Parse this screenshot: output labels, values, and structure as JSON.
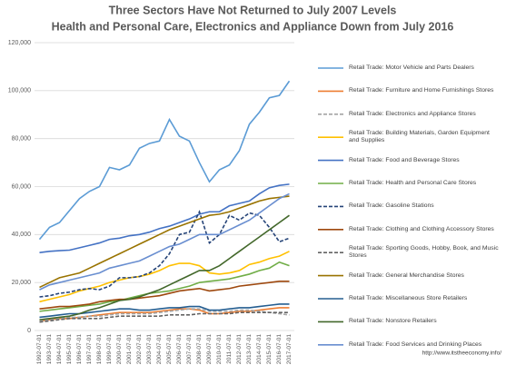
{
  "chart_data": {
    "type": "line",
    "title": "Three Sectors Have Not Returned to July 2007 Levels",
    "subtitle": "Health and Personal Care, Electronics and Appliance Down from July 2016",
    "source": "http://www.itstheeconomy.info/",
    "categories": [
      "1992-07-01",
      "1993-07-01",
      "1994-07-01",
      "1995-07-01",
      "1996-07-01",
      "1997-07-01",
      "1998-07-01",
      "1999-07-01",
      "2000-07-01",
      "2001-07-01",
      "2002-07-01",
      "2003-07-01",
      "2004-07-01",
      "2005-07-01",
      "2006-07-01",
      "2007-07-01",
      "2008-07-01",
      "2009-07-01",
      "2010-07-01",
      "2011-07-01",
      "2012-07-01",
      "2013-07-01",
      "2014-07-01",
      "2015-07-01",
      "2016-07-01",
      "2017-07-01"
    ],
    "ylim": [
      0,
      120000
    ],
    "yticks": [
      {
        "value": 0,
        "label": "0"
      },
      {
        "value": 20000,
        "label": "20,000"
      },
      {
        "value": 40000,
        "label": "40,000"
      },
      {
        "value": 60000,
        "label": "60,000"
      },
      {
        "value": 80000,
        "label": "80,000"
      },
      {
        "value": 100000,
        "label": "100,000"
      },
      {
        "value": 120000,
        "label": "120,000"
      }
    ],
    "grid": true,
    "series": [
      {
        "name": "Retail Trade: Motor Vehicle and Parts Dealers",
        "color": "#5b9bd5",
        "dashed": false,
        "values": [
          38000,
          43000,
          45000,
          50000,
          55000,
          58000,
          60000,
          68000,
          67000,
          69000,
          76000,
          78000,
          79000,
          88000,
          81000,
          79000,
          70000,
          62000,
          67000,
          69000,
          75000,
          86000,
          91000,
          97000,
          98000,
          104000
        ]
      },
      {
        "name": "Retail Trade: Furniture and Home Furnishings Stores",
        "color": "#ed7d31",
        "dashed": false,
        "values": [
          4000,
          4500,
          5000,
          5000,
          5500,
          6000,
          6500,
          7000,
          7500,
          7500,
          7500,
          7500,
          8000,
          8500,
          9000,
          9000,
          8500,
          7000,
          7000,
          7500,
          8000,
          8000,
          8500,
          9000,
          9500,
          9500
        ]
      },
      {
        "name": "Retail Trade: Electronics and Appliance Stores",
        "color": "#a5a5a5",
        "dashed": true,
        "values": [
          4000,
          4500,
          5000,
          5500,
          5500,
          6000,
          6000,
          6500,
          7000,
          7000,
          7000,
          7000,
          7500,
          8000,
          8500,
          9000,
          9000,
          8000,
          8000,
          8000,
          8500,
          8500,
          8000,
          7500,
          7000,
          6500
        ]
      },
      {
        "name": "Retail Trade: Building Materials, Garden Equipment and Supplies",
        "color": "#ffc000",
        "dashed": false,
        "values": [
          12000,
          13000,
          14000,
          15000,
          16500,
          17500,
          18500,
          20000,
          21000,
          22000,
          22500,
          23500,
          25000,
          27000,
          28000,
          28000,
          27000,
          24000,
          23500,
          24000,
          25000,
          27500,
          28500,
          30000,
          31000,
          33000
        ]
      },
      {
        "name": "Retail Trade: Food and Beverage Stores",
        "color": "#4472c4",
        "dashed": false,
        "values": [
          32500,
          33000,
          33300,
          33500,
          34500,
          35500,
          36500,
          38000,
          38500,
          39500,
          40000,
          41000,
          42500,
          43500,
          45000,
          46500,
          48500,
          49500,
          49500,
          52000,
          53000,
          54000,
          57000,
          59500,
          60500,
          61000
        ]
      },
      {
        "name": "Retail Trade: Health and Personal Care Stores",
        "color": "#70ad47",
        "dashed": false,
        "values": [
          8000,
          8500,
          9000,
          9500,
          10000,
          10500,
          11000,
          12000,
          12500,
          13500,
          14500,
          15500,
          16000,
          16500,
          17500,
          18500,
          20000,
          20500,
          21000,
          21500,
          22500,
          23500,
          25000,
          26000,
          28500,
          27000
        ]
      },
      {
        "name": "Retail Trade: Gasoline Stations",
        "color": "#264478",
        "dashed": true,
        "values": [
          14000,
          14500,
          15500,
          16000,
          17000,
          17500,
          17000,
          18500,
          22000,
          22000,
          22500,
          24000,
          27000,
          32000,
          40000,
          41000,
          49500,
          36500,
          40000,
          48000,
          46000,
          49000,
          48000,
          43000,
          37000,
          38500
        ]
      },
      {
        "name": "Retail Trade: Clothing and Clothing Accessory Stores",
        "color": "#9e480e",
        "dashed": false,
        "values": [
          9000,
          9500,
          10000,
          10000,
          10500,
          11000,
          12000,
          12500,
          13000,
          13000,
          13500,
          14000,
          14500,
          15500,
          16500,
          17000,
          17500,
          16500,
          17000,
          17500,
          18500,
          19000,
          19500,
          20000,
          20500,
          20500
        ]
      },
      {
        "name": "Retail Trade: Sporting Goods, Hobby, Book, and Music Stores",
        "color": "#636363",
        "dashed": true,
        "values": [
          3500,
          4000,
          4500,
          5000,
          5000,
          5000,
          5000,
          5500,
          6000,
          6000,
          6000,
          6000,
          6000,
          6500,
          6500,
          6500,
          7000,
          7000,
          7000,
          7000,
          7500,
          7500,
          7500,
          7500,
          7500,
          7500
        ]
      },
      {
        "name": "Retail Trade: General Merchandise Stores",
        "color": "#997300",
        "dashed": false,
        "values": [
          18000,
          20000,
          22000,
          23000,
          24000,
          26000,
          28000,
          30000,
          32000,
          34000,
          36000,
          38000,
          40000,
          42000,
          43500,
          45000,
          46500,
          48000,
          48500,
          49500,
          51000,
          52500,
          54000,
          55000,
          55500,
          56000
        ]
      },
      {
        "name": "Retail Trade: Miscellaneous Store Retailers",
        "color": "#255e91",
        "dashed": false,
        "values": [
          5500,
          6000,
          6500,
          7000,
          7000,
          7500,
          8000,
          8500,
          9000,
          9000,
          8500,
          8500,
          9000,
          9500,
          9500,
          10000,
          10000,
          8500,
          8500,
          9000,
          9500,
          9500,
          10000,
          10500,
          11000,
          11000
        ]
      },
      {
        "name": "Retail Trade: Nonstore Retailers",
        "color": "#43682b",
        "dashed": false,
        "values": [
          4500,
          5000,
          5500,
          6000,
          7000,
          8500,
          9500,
          11000,
          12500,
          13000,
          14000,
          15500,
          17000,
          19000,
          21000,
          23000,
          25000,
          25000,
          27000,
          30000,
          33000,
          36000,
          39000,
          42000,
          45000,
          48000
        ]
      },
      {
        "name": "Retail Trade: Food Services and Drinking Places",
        "color": "#698ed0",
        "dashed": false,
        "values": [
          17000,
          19000,
          20000,
          21000,
          22000,
          23000,
          24000,
          26000,
          27000,
          28000,
          29000,
          31000,
          33000,
          35000,
          36000,
          38000,
          40000,
          40000,
          40000,
          42000,
          44000,
          46000,
          49000,
          52000,
          55000,
          57000
        ]
      }
    ]
  }
}
